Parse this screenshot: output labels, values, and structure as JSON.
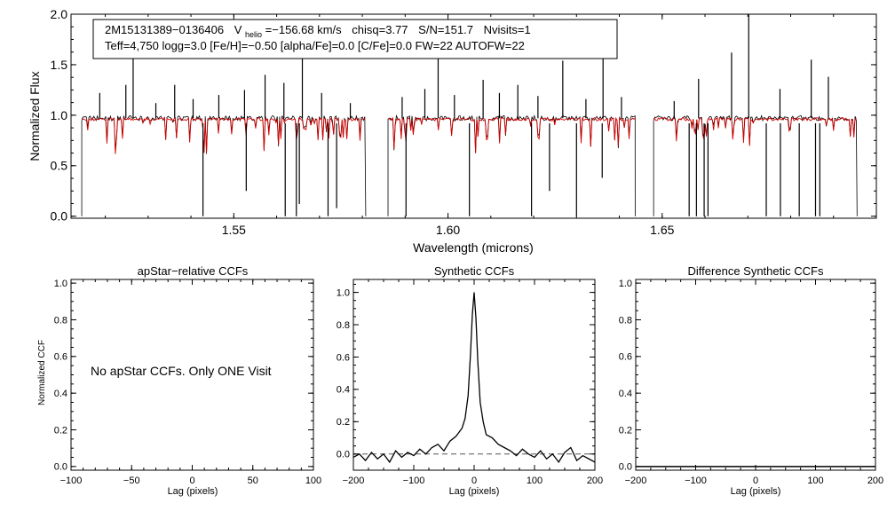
{
  "colors": {
    "observed": "#000000",
    "model": "#d40000",
    "axis": "#000000",
    "zero_line": "#555555"
  },
  "header": {
    "star_id": "2M15131389−0136406",
    "vhelio_symbol": "V",
    "vhelio_subscript": "helio",
    "vhelio_value": "=−156.68 km/s",
    "chisq": "chisq=3.77",
    "snr": "S/N=151.7",
    "nvisits": "Nvisits=1",
    "params_line": "Teff=4,750 logg=3.0 [Fe/H]=−0.50 [alpha/Fe]=0.0 [C/Fe]=0.0 FW=22 AUTOFW=22"
  },
  "chart_data": [
    {
      "id": "spectrum",
      "type": "line",
      "title": "",
      "xlabel": "Wavelength (microns)",
      "ylabel": "Normalized Flux",
      "xlim": [
        1.512,
        1.7
      ],
      "ylim": [
        -0.02,
        2.0
      ],
      "xticks": [
        1.55,
        1.6,
        1.65
      ],
      "xtick_labels": [
        "1.55",
        "1.60",
        "1.65"
      ],
      "yticks": [
        0.0,
        0.5,
        1.0,
        1.5,
        2.0
      ],
      "ytick_labels": [
        "0.0",
        "0.5",
        "1.0",
        "1.5",
        "2.0"
      ],
      "chips": [
        [
          1.5145,
          1.5808
        ],
        [
          1.586,
          1.6437
        ],
        [
          1.648,
          1.6955
        ]
      ],
      "series": [
        {
          "role": "observed",
          "continuum": 0.97
        },
        {
          "role": "model",
          "continuum": 0.96
        }
      ],
      "emission_spikes": [
        [
          1.5187,
          1.22
        ],
        [
          1.5248,
          1.3
        ],
        [
          1.5265,
          1.95
        ],
        [
          1.5318,
          1.12
        ],
        [
          1.5362,
          1.3
        ],
        [
          1.5405,
          1.16
        ],
        [
          1.5465,
          1.2
        ],
        [
          1.5525,
          1.25
        ],
        [
          1.5573,
          1.4
        ],
        [
          1.5617,
          1.32
        ],
        [
          1.566,
          1.85
        ],
        [
          1.5705,
          1.22
        ],
        [
          1.5772,
          1.12
        ],
        [
          1.5893,
          1.18
        ],
        [
          1.5946,
          1.26
        ],
        [
          1.5977,
          1.62
        ],
        [
          1.6015,
          1.2
        ],
        [
          1.6082,
          1.35
        ],
        [
          1.612,
          1.22
        ],
        [
          1.6163,
          1.3
        ],
        [
          1.621,
          1.19
        ],
        [
          1.6268,
          1.54
        ],
        [
          1.6322,
          1.16
        ],
        [
          1.6362,
          1.68
        ],
        [
          1.6405,
          1.18
        ],
        [
          1.6528,
          1.14
        ],
        [
          1.6585,
          1.36
        ],
        [
          1.6662,
          1.62
        ],
        [
          1.6702,
          2.0
        ],
        [
          1.6775,
          1.26
        ],
        [
          1.6848,
          1.55
        ],
        [
          1.6888,
          1.38
        ]
      ],
      "absorption_drops": [
        [
          1.5428,
          0.0
        ],
        [
          1.5529,
          0.25
        ],
        [
          1.562,
          0.0
        ],
        [
          1.5646,
          0.0
        ],
        [
          1.5653,
          0.12
        ],
        [
          1.572,
          0.0
        ],
        [
          1.574,
          0.08
        ],
        [
          1.5902,
          0.0
        ],
        [
          1.605,
          0.0
        ],
        [
          1.6195,
          0.0
        ],
        [
          1.6237,
          0.25
        ],
        [
          1.63,
          0.0
        ],
        [
          1.636,
          0.38
        ],
        [
          1.6563,
          0.0
        ],
        [
          1.658,
          0.0
        ],
        [
          1.6598,
          0.0
        ],
        [
          1.6607,
          0.0
        ],
        [
          1.6743,
          0.0
        ],
        [
          1.6776,
          0.0
        ],
        [
          1.682,
          0.0
        ],
        [
          1.6858,
          0.0
        ],
        [
          1.6868,
          0.0
        ]
      ]
    },
    {
      "id": "apstar-ccf",
      "type": "line",
      "title": "apStar−relative CCFs",
      "xlabel": "Lag (pixels)",
      "ylabel": "Normalized CCF",
      "xlim": [
        -100,
        100
      ],
      "ylim": [
        -0.02,
        1.02
      ],
      "xticks": [
        -100,
        -50,
        0,
        50,
        100
      ],
      "xtick_labels": [
        "−100",
        "−50",
        "0",
        "50",
        "100"
      ],
      "yticks": [
        0.0,
        0.2,
        0.4,
        0.6,
        0.8,
        1.0
      ],
      "ytick_labels": [
        "0.0",
        "0.2",
        "0.4",
        "0.6",
        "0.8",
        "1.0"
      ],
      "message": "No apStar CCFs.  Only ONE Visit",
      "series": []
    },
    {
      "id": "synthetic-ccf",
      "type": "line",
      "title": "Synthetic CCFs",
      "xlabel": "Lag (pixels)",
      "ylabel": "",
      "xlim": [
        -200,
        200
      ],
      "ylim": [
        -0.1,
        1.08
      ],
      "xticks": [
        -200,
        -100,
        0,
        100,
        200
      ],
      "xtick_labels": [
        "−200",
        "−100",
        "0",
        "100",
        "200"
      ],
      "yticks": [
        0.0,
        0.2,
        0.4,
        0.6,
        0.8,
        1.0
      ],
      "ytick_labels": [
        "0.0",
        "0.2",
        "0.4",
        "0.6",
        "0.8",
        "1.0"
      ],
      "reference_line": 0.0,
      "series": [
        {
          "x": [
            -200,
            -190,
            -180,
            -170,
            -160,
            -150,
            -140,
            -130,
            -120,
            -110,
            -100,
            -90,
            -80,
            -70,
            -60,
            -50,
            -40,
            -30,
            -20,
            -15,
            -10,
            -6,
            -3,
            0,
            3,
            6,
            10,
            15,
            20,
            30,
            40,
            50,
            60,
            70,
            80,
            90,
            100,
            110,
            120,
            130,
            140,
            150,
            160,
            170,
            180,
            190,
            200
          ],
          "y": [
            -0.02,
            0.0,
            -0.04,
            0.01,
            -0.03,
            0.0,
            -0.05,
            0.02,
            -0.02,
            0.01,
            -0.01,
            0.03,
            0.0,
            0.04,
            0.06,
            0.02,
            0.08,
            0.11,
            0.16,
            0.22,
            0.36,
            0.62,
            0.86,
            1.0,
            0.84,
            0.58,
            0.32,
            0.2,
            0.12,
            0.1,
            0.06,
            0.04,
            0.02,
            -0.01,
            0.03,
            0.0,
            -0.02,
            0.02,
            -0.03,
            0.0,
            -0.05,
            0.01,
            0.04,
            -0.04,
            -0.01,
            -0.03,
            -0.05
          ]
        }
      ]
    },
    {
      "id": "difference-ccf",
      "type": "line",
      "title": "Difference Synthetic CCFs",
      "xlabel": "Lag (pixels)",
      "ylabel": "",
      "xlim": [
        -200,
        200
      ],
      "ylim": [
        -0.02,
        1.02
      ],
      "xticks": [
        -200,
        -100,
        0,
        100,
        200
      ],
      "xtick_labels": [
        "−200",
        "−100",
        "0",
        "100",
        "200"
      ],
      "yticks": [
        0.0,
        0.2,
        0.4,
        0.6,
        0.8,
        1.0
      ],
      "ytick_labels": [
        "0.0",
        "0.2",
        "0.4",
        "0.6",
        "0.8",
        "1.0"
      ],
      "series": [
        {
          "x": [
            -200,
            200
          ],
          "y": [
            0.0,
            0.0
          ]
        }
      ]
    }
  ]
}
